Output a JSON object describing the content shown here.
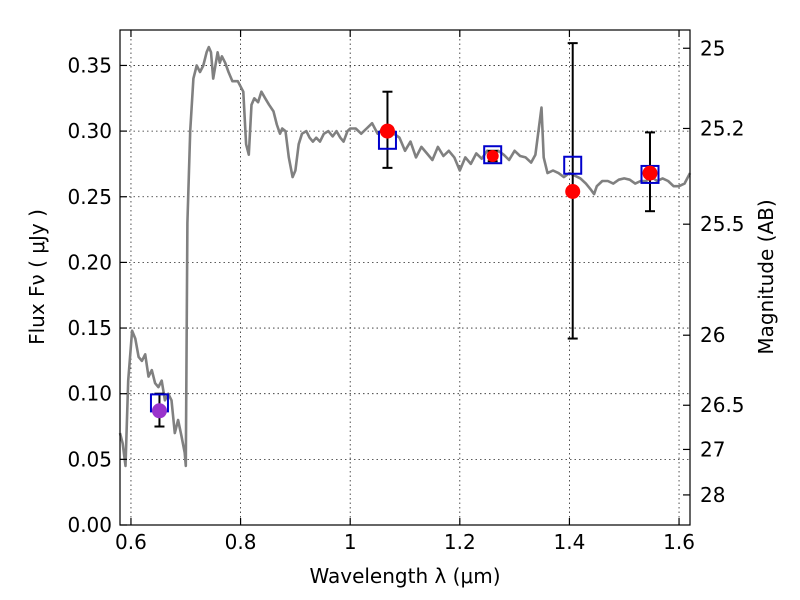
{
  "chart_data": {
    "type": "line",
    "xlabel": "Wavelength  λ (μm)",
    "ylabel": "Flux  Fν  ( μJy )",
    "ylabel_right": "Magnitude (AB)",
    "xlim": [
      0.58,
      1.62
    ],
    "ylim": [
      0.0,
      0.377
    ],
    "grid": true,
    "x_ticks": [
      {
        "value": 0.6,
        "label": "0.6"
      },
      {
        "value": 0.8,
        "label": "0.8"
      },
      {
        "value": 1.0,
        "label": "1"
      },
      {
        "value": 1.2,
        "label": "1.2"
      },
      {
        "value": 1.4,
        "label": "1.4"
      },
      {
        "value": 1.6,
        "label": "1.6"
      }
    ],
    "y_ticks": [
      {
        "value": 0.0,
        "label": "0.00"
      },
      {
        "value": 0.05,
        "label": "0.05"
      },
      {
        "value": 0.1,
        "label": "0.10"
      },
      {
        "value": 0.15,
        "label": "0.15"
      },
      {
        "value": 0.2,
        "label": "0.20"
      },
      {
        "value": 0.25,
        "label": "0.25"
      },
      {
        "value": 0.3,
        "label": "0.30"
      },
      {
        "value": 0.35,
        "label": "0.35"
      }
    ],
    "mag_ticks": [
      {
        "value": 25.0,
        "label": "25"
      },
      {
        "value": 25.2,
        "label": "25.2"
      },
      {
        "value": 25.5,
        "label": "25.5"
      },
      {
        "value": 26.0,
        "label": "26"
      },
      {
        "value": 26.5,
        "label": "26.5"
      },
      {
        "value": 27.0,
        "label": "27"
      },
      {
        "value": 28.0,
        "label": "28"
      }
    ],
    "spectrum": {
      "color": "#808080",
      "points": [
        [
          0.58,
          0.07
        ],
        [
          0.585,
          0.062
        ],
        [
          0.59,
          0.045
        ],
        [
          0.595,
          0.11
        ],
        [
          0.602,
          0.148
        ],
        [
          0.608,
          0.142
        ],
        [
          0.614,
          0.128
        ],
        [
          0.62,
          0.125
        ],
        [
          0.626,
          0.13
        ],
        [
          0.632,
          0.113
        ],
        [
          0.638,
          0.118
        ],
        [
          0.644,
          0.108
        ],
        [
          0.65,
          0.105
        ],
        [
          0.656,
          0.11
        ],
        [
          0.662,
          0.095
        ],
        [
          0.668,
          0.1
        ],
        [
          0.674,
          0.095
        ],
        [
          0.68,
          0.07
        ],
        [
          0.686,
          0.08
        ],
        [
          0.692,
          0.068
        ],
        [
          0.698,
          0.055
        ],
        [
          0.7,
          0.045
        ],
        [
          0.703,
          0.23
        ],
        [
          0.708,
          0.3
        ],
        [
          0.714,
          0.34
        ],
        [
          0.72,
          0.35
        ],
        [
          0.726,
          0.345
        ],
        [
          0.732,
          0.35
        ],
        [
          0.738,
          0.36
        ],
        [
          0.742,
          0.364
        ],
        [
          0.746,
          0.36
        ],
        [
          0.75,
          0.34
        ],
        [
          0.754,
          0.35
        ],
        [
          0.758,
          0.36
        ],
        [
          0.762,
          0.352
        ],
        [
          0.766,
          0.357
        ],
        [
          0.772,
          0.352
        ],
        [
          0.778,
          0.345
        ],
        [
          0.785,
          0.338
        ],
        [
          0.795,
          0.338
        ],
        [
          0.805,
          0.33
        ],
        [
          0.81,
          0.29
        ],
        [
          0.815,
          0.282
        ],
        [
          0.82,
          0.32
        ],
        [
          0.825,
          0.325
        ],
        [
          0.832,
          0.322
        ],
        [
          0.838,
          0.33
        ],
        [
          0.845,
          0.325
        ],
        [
          0.852,
          0.32
        ],
        [
          0.86,
          0.315
        ],
        [
          0.866,
          0.305
        ],
        [
          0.872,
          0.298
        ],
        [
          0.876,
          0.302
        ],
        [
          0.882,
          0.3
        ],
        [
          0.888,
          0.28
        ],
        [
          0.895,
          0.265
        ],
        [
          0.9,
          0.27
        ],
        [
          0.906,
          0.29
        ],
        [
          0.912,
          0.298
        ],
        [
          0.92,
          0.3
        ],
        [
          0.926,
          0.295
        ],
        [
          0.932,
          0.292
        ],
        [
          0.938,
          0.295
        ],
        [
          0.945,
          0.292
        ],
        [
          0.952,
          0.298
        ],
        [
          0.96,
          0.3
        ],
        [
          0.968,
          0.296
        ],
        [
          0.975,
          0.3
        ],
        [
          0.982,
          0.295
        ],
        [
          0.988,
          0.292
        ],
        [
          0.995,
          0.3
        ],
        [
          1.0,
          0.302
        ],
        [
          1.01,
          0.302
        ],
        [
          1.02,
          0.298
        ],
        [
          1.03,
          0.302
        ],
        [
          1.04,
          0.306
        ],
        [
          1.05,
          0.298
        ],
        [
          1.06,
          0.302
        ],
        [
          1.07,
          0.296
        ],
        [
          1.08,
          0.298
        ],
        [
          1.09,
          0.295
        ],
        [
          1.1,
          0.285
        ],
        [
          1.11,
          0.292
        ],
        [
          1.12,
          0.28
        ],
        [
          1.13,
          0.288
        ],
        [
          1.14,
          0.283
        ],
        [
          1.15,
          0.278
        ],
        [
          1.16,
          0.288
        ],
        [
          1.17,
          0.281
        ],
        [
          1.18,
          0.285
        ],
        [
          1.19,
          0.28
        ],
        [
          1.2,
          0.27
        ],
        [
          1.21,
          0.28
        ],
        [
          1.22,
          0.275
        ],
        [
          1.23,
          0.283
        ],
        [
          1.24,
          0.279
        ],
        [
          1.25,
          0.285
        ],
        [
          1.26,
          0.28
        ],
        [
          1.27,
          0.285
        ],
        [
          1.28,
          0.282
        ],
        [
          1.29,
          0.278
        ],
        [
          1.3,
          0.285
        ],
        [
          1.31,
          0.281
        ],
        [
          1.32,
          0.28
        ],
        [
          1.33,
          0.276
        ],
        [
          1.338,
          0.282
        ],
        [
          1.345,
          0.305
        ],
        [
          1.349,
          0.318
        ],
        [
          1.353,
          0.28
        ],
        [
          1.36,
          0.268
        ],
        [
          1.37,
          0.27
        ],
        [
          1.38,
          0.268
        ],
        [
          1.39,
          0.265
        ],
        [
          1.4,
          0.268
        ],
        [
          1.41,
          0.266
        ],
        [
          1.42,
          0.264
        ],
        [
          1.43,
          0.26
        ],
        [
          1.44,
          0.255
        ],
        [
          1.445,
          0.252
        ],
        [
          1.45,
          0.258
        ],
        [
          1.46,
          0.262
        ],
        [
          1.47,
          0.262
        ],
        [
          1.48,
          0.26
        ],
        [
          1.49,
          0.263
        ],
        [
          1.5,
          0.264
        ],
        [
          1.51,
          0.263
        ],
        [
          1.52,
          0.26
        ],
        [
          1.53,
          0.262
        ],
        [
          1.54,
          0.262
        ],
        [
          1.55,
          0.265
        ],
        [
          1.56,
          0.262
        ],
        [
          1.57,
          0.264
        ],
        [
          1.58,
          0.262
        ],
        [
          1.59,
          0.258
        ],
        [
          1.6,
          0.258
        ],
        [
          1.61,
          0.26
        ],
        [
          1.62,
          0.268
        ]
      ]
    },
    "observed": {
      "color": "#ff0000",
      "points": [
        {
          "x": 0.652,
          "y": 0.087,
          "yerr_low": 0.075,
          "yerr_high": 0.1
        },
        {
          "x": 1.068,
          "y": 0.3,
          "yerr_low": 0.272,
          "yerr_high": 0.33
        },
        {
          "x": 1.26,
          "y": 0.281,
          "yerr_low": 0.277,
          "yerr_high": 0.285
        },
        {
          "x": 1.406,
          "y": 0.254,
          "yerr_low": 0.142,
          "yerr_high": 0.367
        },
        {
          "x": 1.547,
          "y": 0.268,
          "yerr_low": 0.239,
          "yerr_high": 0.299
        }
      ]
    },
    "model_points": {
      "color": "#0000cc",
      "points": [
        {
          "x": 0.652,
          "y": 0.093
        },
        {
          "x": 1.068,
          "y": 0.293
        },
        {
          "x": 1.26,
          "y": 0.282
        },
        {
          "x": 1.406,
          "y": 0.274
        },
        {
          "x": 1.547,
          "y": 0.267
        }
      ]
    },
    "overlap_color": "#9933cc"
  }
}
